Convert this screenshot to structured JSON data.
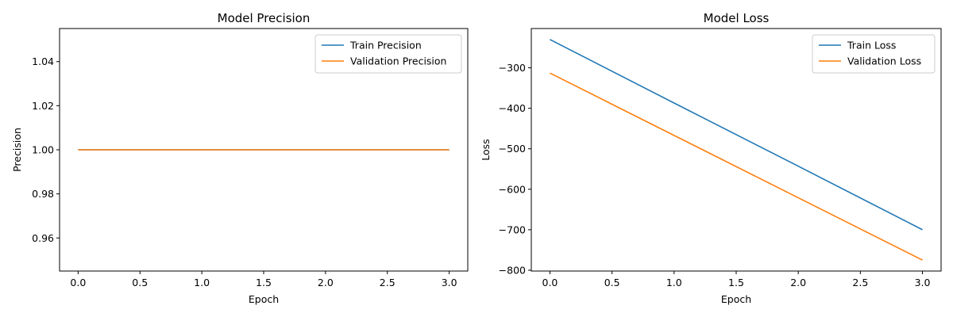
{
  "chart_data": [
    {
      "type": "line",
      "title": "Model Precision",
      "xlabel": "Epoch",
      "ylabel": "Precision",
      "xlim": [
        -0.15,
        3.15
      ],
      "ylim": [
        0.945,
        1.055
      ],
      "xticks": [
        0.0,
        0.5,
        1.0,
        1.5,
        2.0,
        2.5,
        3.0
      ],
      "xtick_labels": [
        "0.0",
        "0.5",
        "1.0",
        "1.5",
        "2.0",
        "2.5",
        "3.0"
      ],
      "yticks": [
        0.96,
        0.98,
        1.0,
        1.02,
        1.04
      ],
      "ytick_labels": [
        "0.96",
        "0.98",
        "1.00",
        "1.02",
        "1.04"
      ],
      "grid": false,
      "legend": "upper-right",
      "x": [
        0,
        1,
        2,
        3
      ],
      "series": [
        {
          "name": "Train Precision",
          "values": [
            1.0,
            1.0,
            1.0,
            1.0
          ],
          "color": "#1f77b4"
        },
        {
          "name": "Validation Precision",
          "values": [
            1.0,
            1.0,
            1.0,
            1.0
          ],
          "color": "#ff7f0e"
        }
      ]
    },
    {
      "type": "line",
      "title": "Model Loss",
      "xlabel": "Epoch",
      "ylabel": "Loss",
      "xlim": [
        -0.15,
        3.15
      ],
      "ylim": [
        -802,
        -203
      ],
      "xticks": [
        0.0,
        0.5,
        1.0,
        1.5,
        2.0,
        2.5,
        3.0
      ],
      "xtick_labels": [
        "0.0",
        "0.5",
        "1.0",
        "1.5",
        "2.0",
        "2.5",
        "3.0"
      ],
      "yticks": [
        -300,
        -400,
        -500,
        -600,
        -700,
        -800
      ],
      "ytick_labels": [
        "−300",
        "−400",
        "−500",
        "−600",
        "−700",
        "−800"
      ],
      "grid": false,
      "legend": "upper-right",
      "x": [
        0,
        1,
        2,
        3
      ],
      "series": [
        {
          "name": "Train Loss",
          "values": [
            -230,
            -387,
            -543,
            -700
          ],
          "color": "#1f77b4"
        },
        {
          "name": "Validation Loss",
          "values": [
            -313,
            -467,
            -621,
            -775
          ],
          "color": "#ff7f0e"
        }
      ]
    }
  ]
}
